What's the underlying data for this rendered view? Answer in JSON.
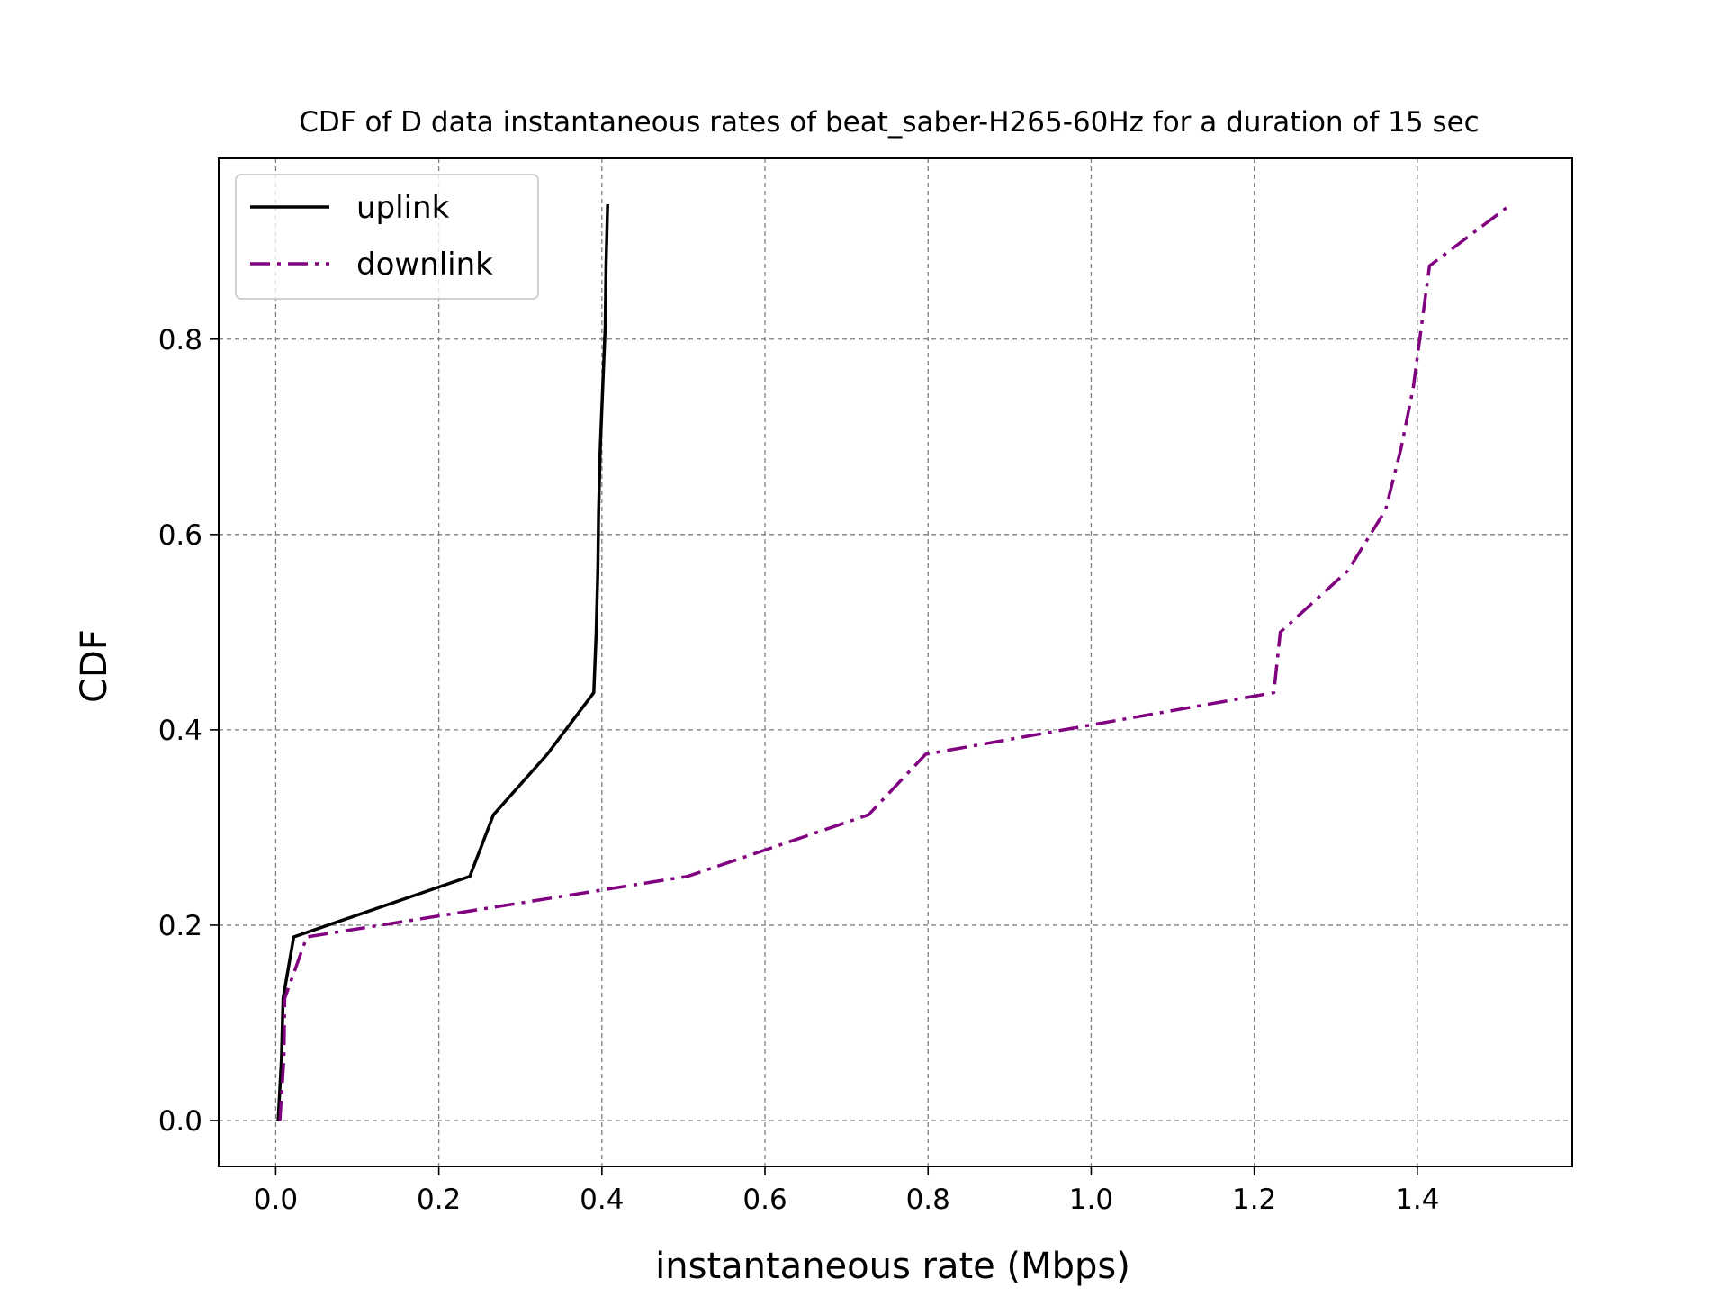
{
  "chart_data": {
    "type": "line",
    "title": "CDF of D data instantaneous rates of beat_saber-H265-60Hz for a duration of 15 sec",
    "xlabel": "instantaneous rate (Mbps)",
    "ylabel": "CDF",
    "xlim": [
      -0.07,
      1.59
    ],
    "ylim": [
      -0.047,
      0.985
    ],
    "xticks": [
      0.0,
      0.2,
      0.4,
      0.6,
      0.8,
      1.0,
      1.2,
      1.4
    ],
    "xtick_labels": [
      "0.0",
      "0.2",
      "0.4",
      "0.6",
      "0.8",
      "1.0",
      "1.2",
      "1.4"
    ],
    "yticks": [
      0.0,
      0.2,
      0.4,
      0.6,
      0.8
    ],
    "ytick_labels": [
      "0.0",
      "0.2",
      "0.4",
      "0.6",
      "0.8"
    ],
    "grid": true,
    "legend_position": "top-left",
    "series": [
      {
        "name": "uplink",
        "color": "#000000",
        "style": "solid",
        "points": [
          [
            0.003,
            0.0
          ],
          [
            0.007,
            0.063
          ],
          [
            0.009,
            0.125
          ],
          [
            0.022,
            0.188
          ],
          [
            0.238,
            0.25
          ],
          [
            0.267,
            0.313
          ],
          [
            0.333,
            0.375
          ],
          [
            0.39,
            0.438
          ],
          [
            0.393,
            0.5
          ],
          [
            0.395,
            0.563
          ],
          [
            0.396,
            0.625
          ],
          [
            0.398,
            0.688
          ],
          [
            0.401,
            0.75
          ],
          [
            0.404,
            0.813
          ],
          [
            0.405,
            0.875
          ],
          [
            0.407,
            0.938
          ]
        ]
      },
      {
        "name": "downlink",
        "color": "#800080",
        "style": "dashdot",
        "points": [
          [
            0.005,
            0.0
          ],
          [
            0.01,
            0.063
          ],
          [
            0.011,
            0.125
          ],
          [
            0.038,
            0.188
          ],
          [
            0.505,
            0.25
          ],
          [
            0.727,
            0.313
          ],
          [
            0.797,
            0.375
          ],
          [
            1.224,
            0.438
          ],
          [
            1.232,
            0.5
          ],
          [
            1.315,
            0.563
          ],
          [
            1.361,
            0.625
          ],
          [
            1.38,
            0.688
          ],
          [
            1.395,
            0.75
          ],
          [
            1.405,
            0.813
          ],
          [
            1.415,
            0.875
          ],
          [
            1.515,
            0.938
          ]
        ]
      }
    ]
  }
}
